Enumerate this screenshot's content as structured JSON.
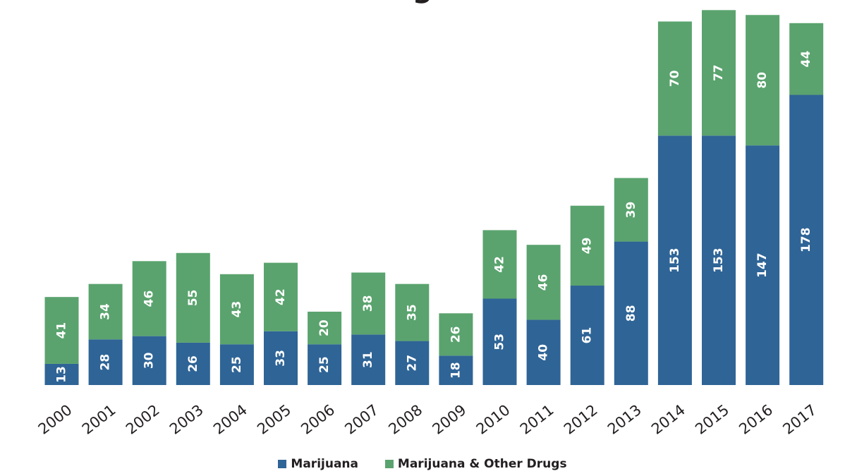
{
  "chart_data": {
    "type": "bar",
    "stacked": true,
    "title_fragment": "g",
    "categories": [
      "2000",
      "2001",
      "2002",
      "2003",
      "2004",
      "2005",
      "2006",
      "2007",
      "2008",
      "2009",
      "2010",
      "2011",
      "2012",
      "2013",
      "2014",
      "2015",
      "2016",
      "2017"
    ],
    "series": [
      {
        "name": "Marijuana",
        "color": "#2f6496",
        "values": [
          13,
          28,
          30,
          26,
          25,
          33,
          25,
          31,
          27,
          18,
          53,
          40,
          61,
          88,
          153,
          153,
          147,
          178
        ]
      },
      {
        "name": "Marijuana & Other Drugs",
        "color": "#5aa36e",
        "values": [
          41,
          34,
          46,
          55,
          43,
          42,
          20,
          38,
          35,
          26,
          42,
          46,
          49,
          39,
          70,
          77,
          80,
          44
        ]
      }
    ],
    "ylim": [
      0,
      231
    ],
    "grid": false,
    "legend_position": "bottom"
  }
}
